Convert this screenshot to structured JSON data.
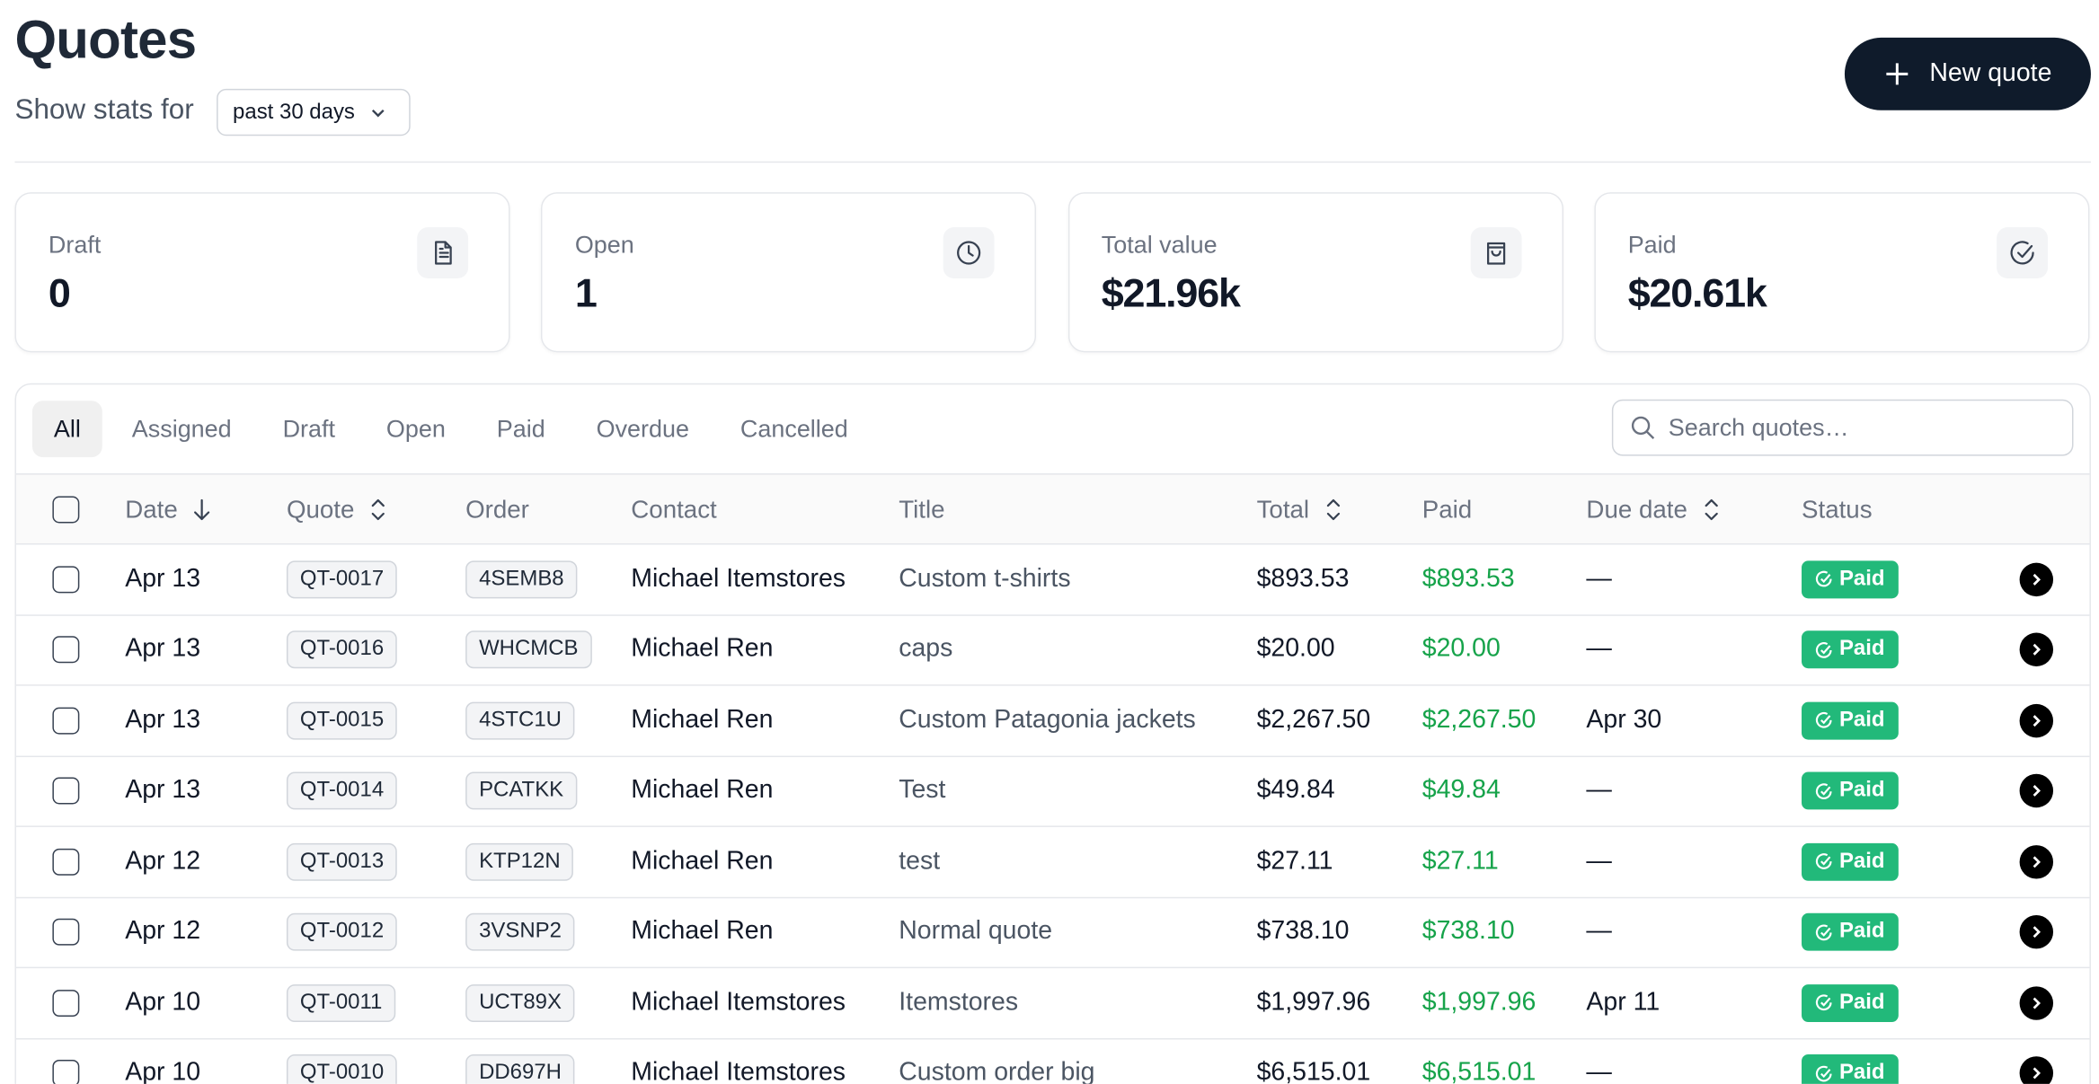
{
  "header": {
    "title": "Quotes",
    "stats_label": "Show stats for",
    "period": "past 30 days",
    "new_button": "New quote"
  },
  "stats": [
    {
      "label": "Draft",
      "value": "0"
    },
    {
      "label": "Open",
      "value": "1"
    },
    {
      "label": "Total value",
      "value": "$21.96k"
    },
    {
      "label": "Paid",
      "value": "$20.61k"
    }
  ],
  "tabs": [
    "All",
    "Assigned",
    "Draft",
    "Open",
    "Paid",
    "Overdue",
    "Cancelled"
  ],
  "search_placeholder": "Search quotes…",
  "table": {
    "columns": [
      "Date",
      "Quote",
      "Order",
      "Contact",
      "Title",
      "Total",
      "Paid",
      "Due date",
      "Status"
    ],
    "rows": [
      [
        "Apr 13",
        "QT-0017",
        "4SEMB8",
        "Michael Itemstores",
        "Custom t-shirts",
        "$893.53",
        "$893.53",
        "—",
        "Paid"
      ],
      [
        "Apr 13",
        "QT-0016",
        "WHCMCB",
        "Michael Ren",
        "caps",
        "$20.00",
        "$20.00",
        "—",
        "Paid"
      ],
      [
        "Apr 13",
        "QT-0015",
        "4STC1U",
        "Michael Ren",
        "Custom Patagonia jackets",
        "$2,267.50",
        "$2,267.50",
        "Apr 30",
        "Paid"
      ],
      [
        "Apr 13",
        "QT-0014",
        "PCATKK",
        "Michael Ren",
        "Test",
        "$49.84",
        "$49.84",
        "—",
        "Paid"
      ],
      [
        "Apr 12",
        "QT-0013",
        "KTP12N",
        "Michael Ren",
        "test",
        "$27.11",
        "$27.11",
        "—",
        "Paid"
      ],
      [
        "Apr 12",
        "QT-0012",
        "3VSNP2",
        "Michael Ren",
        "Normal quote",
        "$738.10",
        "$738.10",
        "—",
        "Paid"
      ],
      [
        "Apr 10",
        "QT-0011",
        "UCT89X",
        "Michael Itemstores",
        "Itemstores",
        "$1,997.96",
        "$1,997.96",
        "Apr 11",
        "Paid"
      ],
      [
        "Apr 10",
        "QT-0010",
        "DD697H",
        "Michael Itemstores",
        "Custom order big",
        "$6,515.01",
        "$6,515.01",
        "—",
        "Paid"
      ]
    ]
  }
}
